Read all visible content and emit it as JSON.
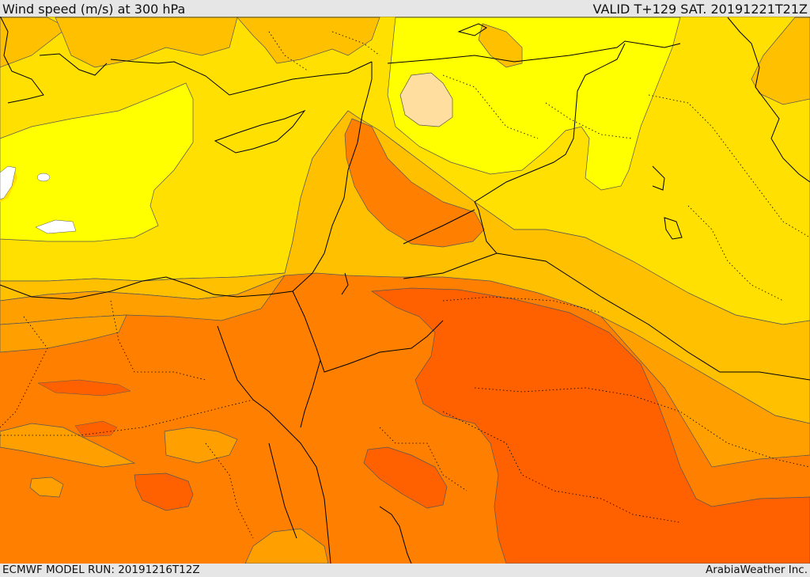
{
  "header": {
    "title": "Wind speed (m/s) at 300 hPa",
    "valid": "VALID T+129 SAT. 20191221T21Z"
  },
  "footer": {
    "model_run": "ECMWF MODEL RUN: 20191216T12Z",
    "credit": "ArabiaWeather Inc."
  },
  "colors": {
    "band_pale": "#ffdea0",
    "band_yellow": "#ffff00",
    "band_gold": "#ffe000",
    "band_amber": "#ffc000",
    "band_orange": "#ffa000",
    "band_dark_orange": "#ff8000",
    "band_red_orange": "#ff6000"
  }
}
